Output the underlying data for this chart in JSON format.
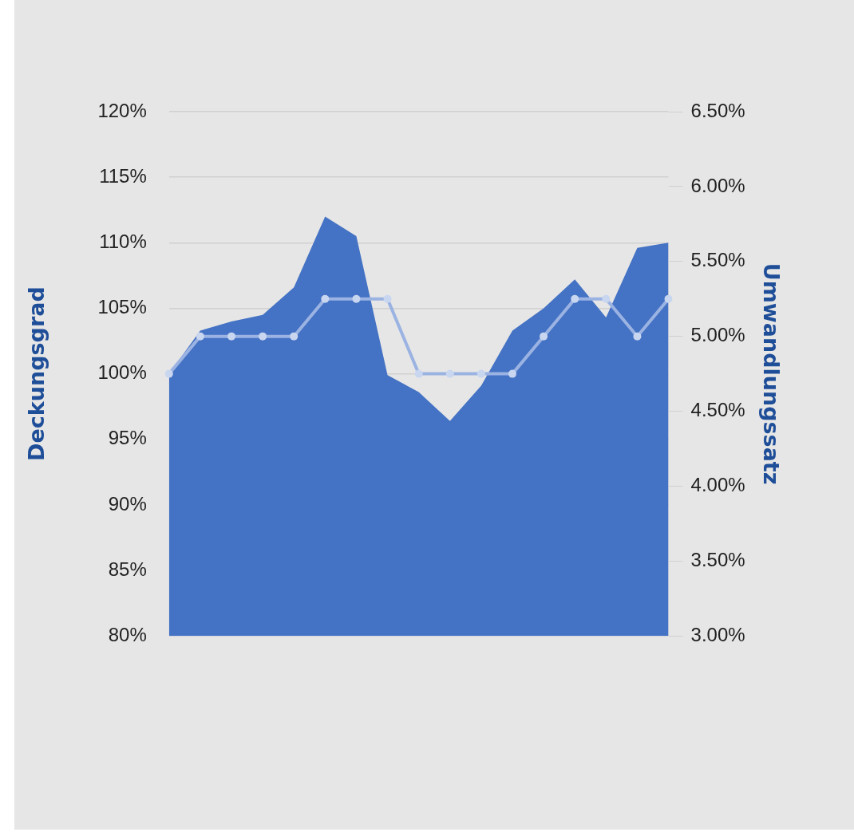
{
  "chart_data": {
    "type": "area",
    "ylabel": "Deckungsgrad",
    "y2label": "Umwandlungssatz",
    "categories": [
      null,
      null,
      null,
      null,
      null,
      null,
      null,
      null,
      null,
      null,
      null,
      null,
      null,
      null,
      null,
      null,
      null
    ],
    "series": [
      {
        "color": "#4472c4",
        "values": [
          100.0,
          103.3,
          104.0,
          104.5,
          106.6,
          112.0,
          110.5,
          99.9,
          98.6,
          96.4,
          99.1,
          103.3,
          105.0,
          107.2,
          104.3,
          109.6,
          110.0
        ]
      },
      {
        "type": "line",
        "axis": "y2",
        "color": "#9bb3e2",
        "marker": "circle",
        "values": [
          4.75,
          5.0,
          5.0,
          5.0,
          5.0,
          5.25,
          5.25,
          5.25,
          4.75,
          4.75,
          4.75,
          4.75,
          5.0,
          5.25,
          5.25,
          5.0,
          5.25
        ]
      }
    ],
    "ylim": [
      80,
      120
    ],
    "yticks": [
      {
        "value": 80,
        "label": "80%"
      },
      {
        "value": 85,
        "label": "85%"
      },
      {
        "value": 90,
        "label": "90%"
      },
      {
        "value": 95,
        "label": "95%"
      },
      {
        "value": 100,
        "label": "100%"
      },
      {
        "value": 105,
        "label": "105%"
      },
      {
        "value": 110,
        "label": "110%"
      },
      {
        "value": 115,
        "label": "115%"
      },
      {
        "value": 120,
        "label": "120%"
      }
    ],
    "y2lim": [
      3.0,
      6.5
    ],
    "y2ticks": [
      {
        "value": 3.0,
        "label": "3.00%"
      },
      {
        "value": 3.5,
        "label": "3.50%"
      },
      {
        "value": 4.0,
        "label": "4.00%"
      },
      {
        "value": 4.5,
        "label": "4.50%"
      },
      {
        "value": 5.0,
        "label": "5.00%"
      },
      {
        "value": 5.5,
        "label": "5.50%"
      },
      {
        "value": 6.0,
        "label": "6.00%"
      },
      {
        "value": 6.5,
        "label": "6.50%"
      }
    ],
    "grid": "y",
    "legend": false
  }
}
